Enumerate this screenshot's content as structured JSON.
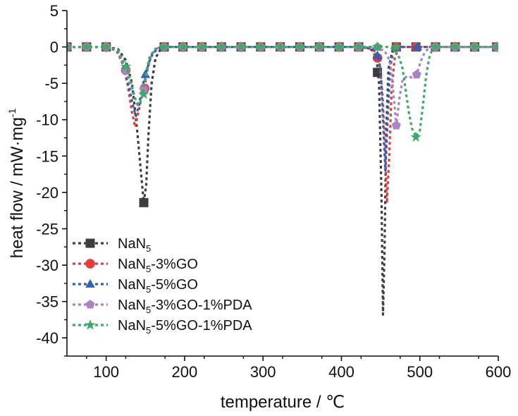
{
  "chart_data": {
    "type": "line",
    "title": "",
    "xlabel": "temperature / ℃",
    "ylabel_main": "heat flow / mW·mg",
    "ylabel_sup": "-1",
    "xlim": [
      50,
      600
    ],
    "ylim": [
      -42.5,
      5
    ],
    "x_ticks": [
      100,
      200,
      300,
      400,
      500,
      600
    ],
    "x_tick_labels": [
      "100",
      "200",
      "300",
      "400",
      "500",
      "600"
    ],
    "y_ticks": [
      5,
      0,
      -5,
      -10,
      -15,
      -20,
      -25,
      -30,
      -35,
      -40
    ],
    "y_tick_labels": [
      "5",
      "0",
      "-5",
      "-10",
      "-15",
      "-20",
      "-25",
      "-30",
      "-35",
      "-40"
    ],
    "grid": false,
    "legend_position": "bottom-left",
    "series": [
      {
        "name_main": "NaN",
        "name_sub": "5",
        "name_rest": "",
        "color": "#3d3d3d",
        "marker": "square",
        "line": [
          [
            50,
            0
          ],
          [
            100,
            0
          ],
          [
            115,
            -0.3
          ],
          [
            125,
            -1.8
          ],
          [
            133,
            -5
          ],
          [
            140,
            -12
          ],
          [
            145,
            -18
          ],
          [
            148,
            -21.4
          ],
          [
            151,
            -19
          ],
          [
            154,
            -12
          ],
          [
            158,
            -5
          ],
          [
            163,
            -1.5
          ],
          [
            170,
            -0.2
          ],
          [
            178,
            0
          ],
          [
            250,
            0
          ],
          [
            400,
            0
          ],
          [
            430,
            0
          ],
          [
            440,
            -0.5
          ],
          [
            445,
            -1.8
          ],
          [
            448,
            -5
          ],
          [
            451,
            -20
          ],
          [
            453,
            -36.8
          ],
          [
            455,
            -28
          ],
          [
            457,
            -12
          ],
          [
            460,
            -3
          ],
          [
            465,
            -0.5
          ],
          [
            475,
            0
          ],
          [
            600,
            0
          ]
        ],
        "markers": [
          [
            50,
            0
          ],
          [
            75,
            0
          ],
          [
            100,
            0
          ],
          [
            148,
            -21.4
          ],
          [
            174,
            0
          ],
          [
            198,
            0
          ],
          [
            222,
            0
          ],
          [
            247,
            0
          ],
          [
            272,
            0
          ],
          [
            297,
            0
          ],
          [
            322,
            0
          ],
          [
            347,
            0
          ],
          [
            372,
            0
          ],
          [
            397,
            0
          ],
          [
            422,
            0
          ],
          [
            446,
            -3.5
          ],
          [
            470,
            0
          ],
          [
            495,
            0
          ],
          [
            520,
            0
          ],
          [
            545,
            0
          ],
          [
            570,
            0
          ],
          [
            598,
            0
          ]
        ]
      },
      {
        "name_main": "NaN",
        "name_sub": "5",
        "name_rest": "-3%GO",
        "color": "#e0403d",
        "marker": "circle",
        "line": [
          [
            50,
            0
          ],
          [
            100,
            0
          ],
          [
            113,
            -0.5
          ],
          [
            120,
            -2
          ],
          [
            127,
            -5
          ],
          [
            133,
            -9
          ],
          [
            137,
            -11
          ],
          [
            141,
            -9
          ],
          [
            145,
            -7
          ],
          [
            149,
            -5.5
          ],
          [
            153,
            -3
          ],
          [
            158,
            -1
          ],
          [
            165,
            -0.2
          ],
          [
            175,
            0
          ],
          [
            420,
            0
          ],
          [
            440,
            -0.3
          ],
          [
            448,
            -1.5
          ],
          [
            452,
            -6
          ],
          [
            455,
            -12
          ],
          [
            458,
            -21.5
          ],
          [
            461,
            -15
          ],
          [
            464,
            -6
          ],
          [
            468,
            -1.5
          ],
          [
            473,
            -0.2
          ],
          [
            480,
            0
          ],
          [
            600,
            0
          ]
        ],
        "markers": [
          [
            50,
            0
          ],
          [
            75,
            0
          ],
          [
            100,
            0
          ],
          [
            125,
            -3.2
          ],
          [
            149,
            -5.7
          ],
          [
            174,
            0
          ],
          [
            198,
            0
          ],
          [
            222,
            0
          ],
          [
            247,
            0
          ],
          [
            272,
            0
          ],
          [
            297,
            0
          ],
          [
            322,
            0
          ],
          [
            347,
            0
          ],
          [
            372,
            0
          ],
          [
            397,
            0
          ],
          [
            422,
            0
          ],
          [
            446,
            -1.5
          ],
          [
            470,
            0
          ],
          [
            495,
            0
          ],
          [
            520,
            0
          ],
          [
            545,
            0
          ],
          [
            570,
            0
          ],
          [
            598,
            0
          ]
        ]
      },
      {
        "name_main": "NaN",
        "name_sub": "5",
        "name_rest": "-5%GO",
        "color": "#2d63b0",
        "marker": "triangle",
        "line": [
          [
            50,
            0
          ],
          [
            100,
            0
          ],
          [
            115,
            -0.6
          ],
          [
            122,
            -2.5
          ],
          [
            128,
            -5
          ],
          [
            134,
            -8
          ],
          [
            138,
            -9.5
          ],
          [
            142,
            -8
          ],
          [
            146,
            -5.5
          ],
          [
            150,
            -3.8
          ],
          [
            155,
            -2
          ],
          [
            160,
            -0.8
          ],
          [
            168,
            -0.1
          ],
          [
            175,
            0
          ],
          [
            420,
            0
          ],
          [
            440,
            -0.2
          ],
          [
            446,
            -1.2
          ],
          [
            450,
            -3
          ],
          [
            453,
            -10
          ],
          [
            456,
            -17
          ],
          [
            459,
            -10
          ],
          [
            462,
            -3
          ],
          [
            466,
            -0.5
          ],
          [
            472,
            0
          ],
          [
            600,
            0
          ]
        ],
        "markers": [
          [
            50,
            0
          ],
          [
            75,
            0
          ],
          [
            100,
            0
          ],
          [
            125,
            -2.8
          ],
          [
            150,
            -3.8
          ],
          [
            174,
            0
          ],
          [
            198,
            0
          ],
          [
            222,
            0
          ],
          [
            247,
            0
          ],
          [
            272,
            0
          ],
          [
            297,
            0
          ],
          [
            322,
            0
          ],
          [
            347,
            0
          ],
          [
            372,
            0
          ],
          [
            397,
            0
          ],
          [
            422,
            0
          ],
          [
            446,
            -1.2
          ],
          [
            470,
            0
          ],
          [
            497,
            0
          ],
          [
            520,
            0
          ],
          [
            545,
            0
          ],
          [
            570,
            0
          ],
          [
            598,
            0
          ]
        ]
      },
      {
        "name_main": "NaN",
        "name_sub": "5",
        "name_rest": "-3%GO-1%PDA",
        "color": "#a884c2",
        "marker": "pentagon",
        "line": [
          [
            50,
            0
          ],
          [
            100,
            0
          ],
          [
            115,
            -0.5
          ],
          [
            125,
            -3
          ],
          [
            133,
            -6
          ],
          [
            140,
            -8
          ],
          [
            144,
            -7.5
          ],
          [
            148,
            -6
          ],
          [
            153,
            -3
          ],
          [
            158,
            -1
          ],
          [
            165,
            -0.2
          ],
          [
            175,
            0
          ],
          [
            440,
            0
          ],
          [
            455,
            -0.5
          ],
          [
            462,
            -2
          ],
          [
            466,
            -6
          ],
          [
            470,
            -10.8
          ],
          [
            474,
            -7
          ],
          [
            478,
            -4.5
          ],
          [
            484,
            -4
          ],
          [
            490,
            -4.2
          ],
          [
            496,
            -3.8
          ],
          [
            501,
            -2
          ],
          [
            506,
            -0.8
          ],
          [
            512,
            -0.1
          ],
          [
            520,
            0
          ],
          [
            600,
            0
          ]
        ],
        "markers": [
          [
            50,
            0
          ],
          [
            75,
            0
          ],
          [
            100,
            0
          ],
          [
            125,
            -3.3
          ],
          [
            148,
            -5.8
          ],
          [
            174,
            0
          ],
          [
            198,
            0
          ],
          [
            222,
            0
          ],
          [
            247,
            0
          ],
          [
            272,
            0
          ],
          [
            297,
            0
          ],
          [
            322,
            0
          ],
          [
            347,
            0
          ],
          [
            372,
            0
          ],
          [
            397,
            0
          ],
          [
            422,
            0
          ],
          [
            446,
            0
          ],
          [
            470,
            -10.8
          ],
          [
            496,
            -3.8
          ],
          [
            520,
            0
          ],
          [
            545,
            0
          ],
          [
            570,
            0
          ],
          [
            598,
            0
          ]
        ]
      },
      {
        "name_main": "NaN",
        "name_sub": "5",
        "name_rest": "-5%GO-1%PDA",
        "color": "#3fa86b",
        "marker": "star",
        "line": [
          [
            50,
            0
          ],
          [
            100,
            0
          ],
          [
            115,
            -0.5
          ],
          [
            125,
            -2.5
          ],
          [
            132,
            -5
          ],
          [
            138,
            -7.5
          ],
          [
            142,
            -8
          ],
          [
            146,
            -6.8
          ],
          [
            150,
            -4
          ],
          [
            155,
            -1.5
          ],
          [
            162,
            -0.3
          ],
          [
            170,
            0
          ],
          [
            460,
            0
          ],
          [
            466,
            -0.3
          ],
          [
            470,
            -0.8
          ],
          [
            474,
            -1.5
          ],
          [
            478,
            -3
          ],
          [
            482,
            -6
          ],
          [
            486,
            -9
          ],
          [
            490,
            -11.2
          ],
          [
            495,
            -12.4
          ],
          [
            500,
            -11.5
          ],
          [
            504,
            -8
          ],
          [
            508,
            -4
          ],
          [
            512,
            -1.5
          ],
          [
            516,
            -0.3
          ],
          [
            522,
            0
          ],
          [
            600,
            0
          ]
        ],
        "markers": [
          [
            50,
            0
          ],
          [
            75,
            0
          ],
          [
            100,
            0
          ],
          [
            125,
            -2.7
          ],
          [
            148,
            -6.5
          ],
          [
            174,
            0
          ],
          [
            198,
            0
          ],
          [
            222,
            0
          ],
          [
            247,
            0
          ],
          [
            272,
            0
          ],
          [
            297,
            0
          ],
          [
            322,
            0
          ],
          [
            347,
            0
          ],
          [
            372,
            0
          ],
          [
            397,
            0
          ],
          [
            422,
            0
          ],
          [
            446,
            0
          ],
          [
            470,
            0
          ],
          [
            495,
            -12.4
          ],
          [
            520,
            0
          ],
          [
            545,
            0
          ],
          [
            570,
            0
          ],
          [
            598,
            0
          ]
        ]
      }
    ]
  }
}
